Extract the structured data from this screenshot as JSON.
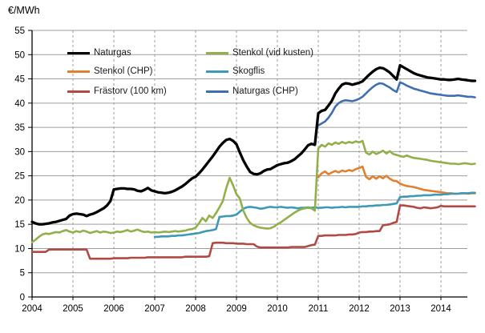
{
  "chart_data": {
    "type": "line",
    "title": "€/MWh",
    "x_ticks": [
      "2004",
      "2005",
      "2006",
      "2007",
      "2008",
      "2009",
      "2010",
      "2011",
      "2012",
      "2013",
      "2014"
    ],
    "xlim": [
      2004,
      2014.92
    ],
    "ylim": [
      0,
      55
    ],
    "y_step": 5,
    "grid": {
      "horizontal": "solid",
      "vertical": "dashed",
      "grid_color": "#9d9d9d"
    },
    "legend_position": "inside-top, two columns",
    "axis_color": "#000000",
    "series": [
      {
        "name": "Naturgas",
        "color": "#000000",
        "width": 3.3,
        "start": 2004.0,
        "monthly_values": [
          15.5,
          15.2,
          15.0,
          15.0,
          15.1,
          15.2,
          15.4,
          15.5,
          15.7,
          15.9,
          16.1,
          16.8,
          17.1,
          17.2,
          17.1,
          17.0,
          16.7,
          17.0,
          17.2,
          17.5,
          17.9,
          18.3,
          18.9,
          19.8,
          22.2,
          22.3,
          22.4,
          22.4,
          22.3,
          22.3,
          22.2,
          21.9,
          21.8,
          22.1,
          22.5,
          22.0,
          21.8,
          21.6,
          21.5,
          21.4,
          21.5,
          21.7,
          22.0,
          22.4,
          22.8,
          23.3,
          23.9,
          24.5,
          24.8,
          25.5,
          26.3,
          27.2,
          28.1,
          29.0,
          30.0,
          31.0,
          31.8,
          32.4,
          32.6,
          32.2,
          31.5,
          29.8,
          28.2,
          26.9,
          25.8,
          25.4,
          25.3,
          25.5,
          26.0,
          26.3,
          26.4,
          26.8,
          27.2,
          27.4,
          27.6,
          27.7,
          28.0,
          28.4,
          29.0,
          29.6,
          30.4,
          31.3,
          31.6,
          31.4,
          37.9,
          38.4,
          38.6,
          39.5,
          40.5,
          42.0,
          43.0,
          43.8,
          44.1,
          44.0,
          43.8,
          44.0,
          44.2,
          44.5,
          45.2,
          45.9,
          46.5,
          47.0,
          47.3,
          47.2,
          46.8,
          46.3,
          45.6,
          44.9,
          47.8,
          47.4,
          47.0,
          46.6,
          46.2,
          45.9,
          45.7,
          45.5,
          45.3,
          45.2,
          45.1,
          45.0,
          44.9,
          44.9,
          44.8,
          44.8,
          44.9,
          45.0,
          44.9,
          44.8,
          44.7,
          44.6,
          44.6
        ]
      },
      {
        "name": "Stenkol (CHP)",
        "color": "#E08030",
        "width": 2.6,
        "start": 2011.0,
        "monthly_values": [
          24.7,
          25.5,
          25.9,
          25.3,
          25.7,
          26.0,
          25.7,
          26.1,
          25.9,
          26.2,
          26.0,
          26.4,
          26.6,
          26.9,
          24.8,
          24.3,
          24.9,
          24.4,
          24.9,
          24.5,
          25.0,
          24.4,
          24.0,
          23.9,
          23.4,
          23.1,
          22.9,
          22.8,
          22.7,
          22.5,
          22.3,
          22.1,
          22.0,
          21.9,
          21.8,
          21.7,
          21.6,
          21.5,
          21.4,
          21.4,
          21.3,
          21.3,
          21.4,
          21.4,
          21.3,
          21.4,
          21.4
        ]
      },
      {
        "name": "Frästorv (100 km)",
        "color": "#B04A42",
        "width": 2.6,
        "start": 2004.0,
        "monthly_values": [
          9.3,
          9.3,
          9.3,
          9.3,
          9.3,
          9.8,
          9.8,
          9.8,
          9.8,
          9.8,
          9.8,
          9.8,
          9.8,
          9.8,
          9.8,
          9.8,
          9.8,
          7.9,
          7.9,
          7.9,
          7.9,
          7.9,
          7.9,
          7.9,
          8.0,
          8.0,
          8.0,
          8.0,
          8.0,
          8.1,
          8.1,
          8.1,
          8.1,
          8.1,
          8.2,
          8.2,
          8.2,
          8.2,
          8.2,
          8.2,
          8.2,
          8.2,
          8.2,
          8.2,
          8.2,
          8.3,
          8.3,
          8.3,
          8.3,
          8.3,
          8.3,
          8.3,
          8.4,
          11.1,
          11.2,
          11.2,
          11.2,
          11.1,
          11.1,
          11.1,
          11.0,
          11.0,
          11.0,
          10.9,
          10.9,
          10.9,
          10.4,
          10.2,
          10.2,
          10.2,
          10.2,
          10.2,
          10.2,
          10.2,
          10.2,
          10.2,
          10.3,
          10.3,
          10.3,
          10.3,
          10.3,
          10.5,
          10.7,
          10.8,
          12.6,
          12.6,
          12.7,
          12.7,
          12.7,
          12.7,
          12.8,
          12.8,
          12.8,
          12.9,
          12.9,
          13.0,
          13.3,
          13.4,
          13.4,
          13.5,
          13.5,
          13.6,
          13.6,
          14.8,
          14.9,
          15.0,
          15.3,
          15.5,
          18.9,
          18.9,
          18.8,
          18.7,
          18.6,
          18.4,
          18.3,
          18.5,
          18.4,
          18.3,
          18.4,
          18.5,
          18.8,
          18.7,
          18.7,
          18.7,
          18.7,
          18.7,
          18.7,
          18.7,
          18.7,
          18.7,
          18.7
        ]
      },
      {
        "name": "Stenkol (vid kusten)",
        "color": "#92B04A",
        "width": 2.6,
        "start": 2004.0,
        "monthly_values": [
          11.3,
          11.8,
          12.4,
          12.9,
          13.1,
          13.0,
          13.2,
          13.4,
          13.3,
          13.6,
          13.8,
          13.5,
          13.3,
          13.6,
          13.4,
          13.7,
          13.5,
          13.2,
          13.4,
          13.6,
          13.3,
          13.5,
          13.4,
          13.2,
          13.3,
          13.5,
          13.4,
          13.6,
          13.8,
          13.5,
          13.7,
          13.9,
          13.6,
          13.4,
          13.5,
          13.3,
          13.4,
          13.3,
          13.4,
          13.5,
          13.4,
          13.5,
          13.6,
          13.5,
          13.6,
          13.7,
          13.9,
          14.0,
          14.3,
          15.2,
          16.3,
          15.6,
          16.8,
          16.3,
          17.3,
          18.5,
          19.8,
          22.5,
          24.6,
          23.0,
          21.2,
          20.3,
          17.8,
          16.3,
          15.3,
          14.8,
          14.5,
          14.3,
          14.2,
          14.1,
          14.2,
          14.5,
          15.0,
          15.4,
          15.9,
          16.4,
          16.9,
          17.4,
          17.8,
          18.1,
          18.3,
          18.4,
          18.3,
          17.8,
          30.6,
          31.4,
          31.0,
          31.7,
          31.4,
          31.9,
          31.6,
          32.0,
          31.7,
          32.0,
          31.8,
          32.1,
          31.9,
          32.2,
          29.8,
          29.4,
          30.0,
          29.5,
          29.8,
          30.2,
          29.6,
          30.1,
          29.5,
          29.3,
          29.1,
          28.9,
          29.2,
          28.9,
          28.7,
          28.6,
          28.5,
          28.4,
          28.3,
          28.1,
          28.0,
          27.9,
          27.8,
          27.7,
          27.6,
          27.5,
          27.5,
          27.4,
          27.5,
          27.6,
          27.5,
          27.4,
          27.5
        ]
      },
      {
        "name": "Skogflis",
        "color": "#3D99B5",
        "width": 2.6,
        "start": 2007.0,
        "monthly_values": [
          12.4,
          12.4,
          12.5,
          12.5,
          12.5,
          12.6,
          12.6,
          12.7,
          12.7,
          12.8,
          12.9,
          13.0,
          13.1,
          13.2,
          13.4,
          13.6,
          13.7,
          13.8,
          14.0,
          16.5,
          16.6,
          16.7,
          16.7,
          16.8,
          17.0,
          17.6,
          18.2,
          18.5,
          18.6,
          18.5,
          18.4,
          18.2,
          18.3,
          18.5,
          18.6,
          18.5,
          18.5,
          18.6,
          18.5,
          18.4,
          18.5,
          18.4,
          18.3,
          18.4,
          18.4,
          18.5,
          18.4,
          18.5,
          18.4,
          18.4,
          18.5,
          18.5,
          18.4,
          18.5,
          18.5,
          18.6,
          18.5,
          18.6,
          18.6,
          18.6,
          18.6,
          18.7,
          18.7,
          18.8,
          18.8,
          18.9,
          18.9,
          19.0,
          19.0,
          19.1,
          19.2,
          19.3,
          20.6,
          20.7,
          20.7,
          20.8,
          20.8,
          20.9,
          20.9,
          21.0,
          21.0,
          21.0,
          21.1,
          21.1,
          21.1,
          21.2,
          21.2,
          21.3,
          21.3,
          21.3,
          21.4,
          21.4,
          21.4,
          21.5,
          21.5
        ]
      },
      {
        "name": "Naturgas (CHP)",
        "color": "#3E6FB1",
        "width": 2.6,
        "start": 2011.0,
        "monthly_values": [
          35.4,
          35.8,
          36.2,
          37.0,
          38.0,
          39.3,
          40.0,
          40.4,
          40.6,
          40.5,
          40.4,
          40.6,
          40.9,
          41.3,
          42.0,
          42.7,
          43.3,
          43.8,
          44.1,
          44.0,
          43.6,
          43.2,
          42.7,
          42.3,
          44.3,
          44.0,
          43.6,
          43.3,
          43.0,
          42.8,
          42.6,
          42.4,
          42.2,
          42.0,
          41.9,
          41.8,
          41.7,
          41.6,
          41.5,
          41.5,
          41.5,
          41.6,
          41.5,
          41.4,
          41.3,
          41.3,
          41.2
        ]
      }
    ]
  }
}
